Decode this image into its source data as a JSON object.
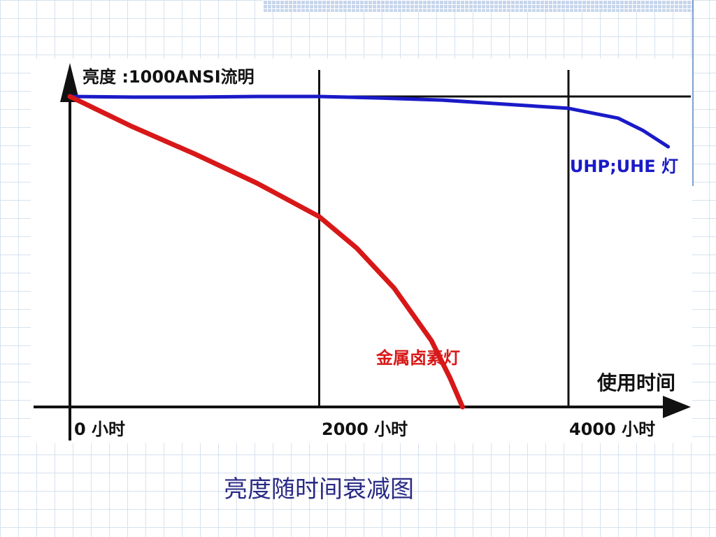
{
  "chart_data": {
    "type": "line",
    "title": "亮度随时间衰减图",
    "ylabel": "亮度 :1000ANSI流明",
    "xlabel": "使用时间",
    "xlim": [
      0,
      5000
    ],
    "ylim": [
      0,
      1000
    ],
    "x_ticks": [
      {
        "value": 0,
        "label": "0 小时"
      },
      {
        "value": 2000,
        "label": "2000 小时"
      },
      {
        "value": 4000,
        "label": "4000 小时"
      }
    ],
    "reference_lines": {
      "vertical": [
        2000,
        4000
      ],
      "horizontal": [
        1000
      ]
    },
    "grid": false,
    "series": [
      {
        "name": "UHP;UHE 灯",
        "color": "#1a1ac8",
        "x": [
          0,
          500,
          1000,
          1500,
          2000,
          2500,
          3000,
          3500,
          4000,
          4400,
          4600,
          4800
        ],
        "y": [
          1000,
          998,
          998,
          1000,
          1000,
          995,
          988,
          975,
          962,
          930,
          890,
          838
        ]
      },
      {
        "name": "金属卤素灯",
        "color": "#d81818",
        "x": [
          0,
          500,
          1000,
          1500,
          2000,
          2300,
          2600,
          2900,
          3050,
          3150
        ],
        "y": [
          1000,
          903,
          815,
          721,
          613,
          512,
          383,
          214,
          93,
          0
        ]
      }
    ]
  },
  "colors": {
    "axis": "#111111",
    "uhp_label": "#1a1ac8",
    "metal_halide_label": "#d81818",
    "caption": "#2a2a86"
  }
}
